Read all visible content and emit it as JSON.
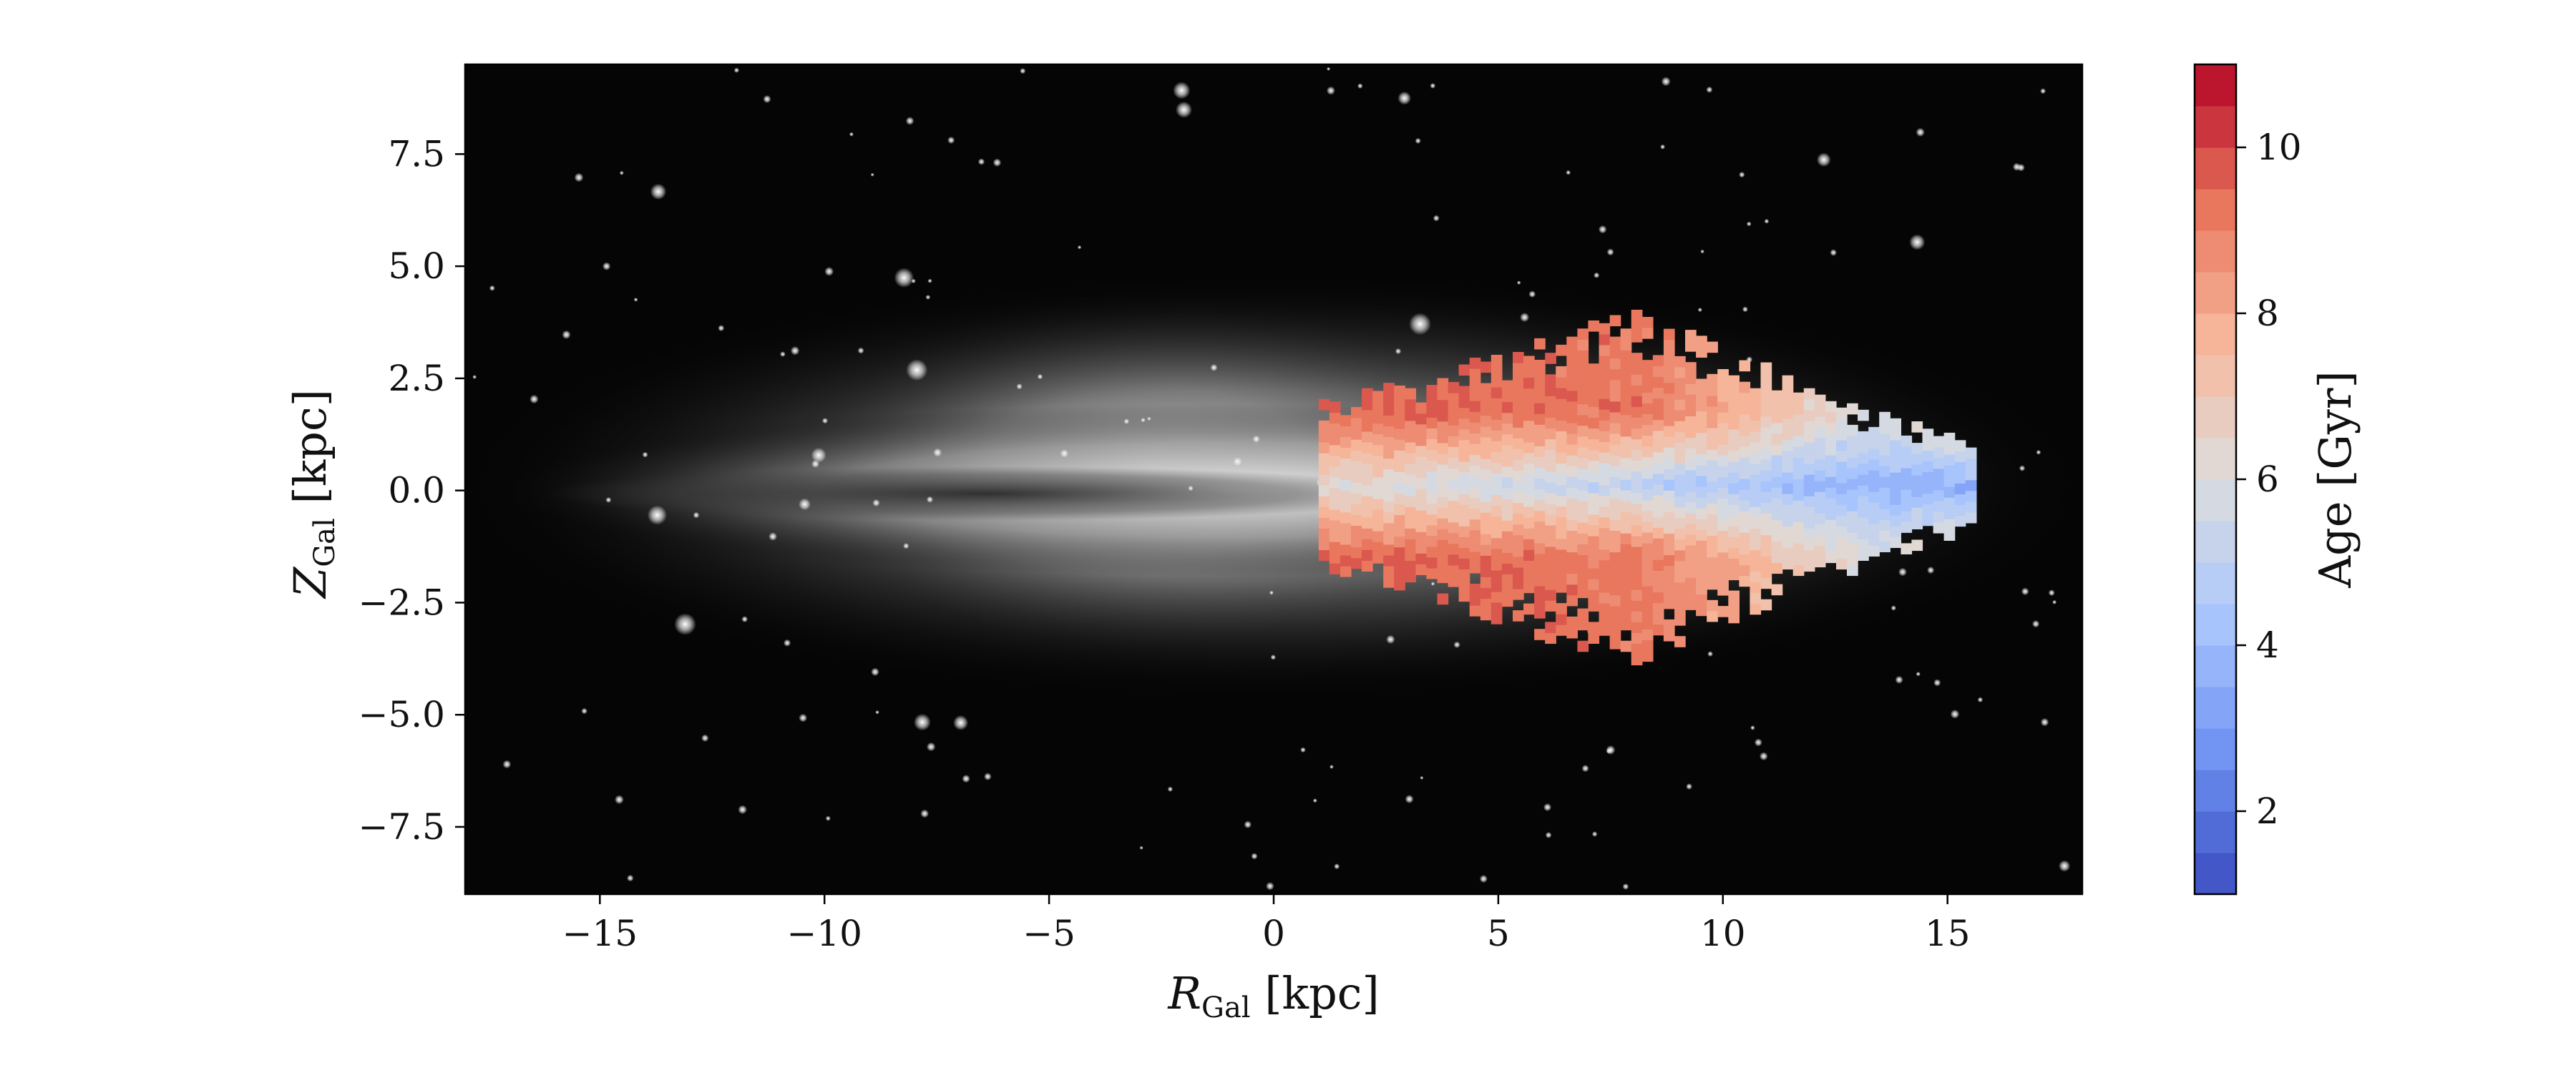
{
  "chart_data": {
    "type": "heatmap",
    "background": "grayscale photograph of an edge-on disk galaxy with a dark central dust lane and a field of point-like stars",
    "xlabel": {
      "symbol": "R",
      "subscript": "Gal",
      "unit": "[kpc]"
    },
    "ylabel": {
      "symbol": "Z",
      "subscript": "Gal",
      "unit": "[kpc]"
    },
    "xlim": [
      -18,
      18
    ],
    "ylim": [
      -9,
      9.5
    ],
    "xticks": [
      {
        "value": -15,
        "label": "−15"
      },
      {
        "value": -10,
        "label": "−10"
      },
      {
        "value": -5,
        "label": "−5"
      },
      {
        "value": 0,
        "label": "0"
      },
      {
        "value": 5,
        "label": "5"
      },
      {
        "value": 10,
        "label": "10"
      },
      {
        "value": 15,
        "label": "15"
      }
    ],
    "yticks": [
      {
        "value": 7.5,
        "label": "7.5"
      },
      {
        "value": 5.0,
        "label": "5.0"
      },
      {
        "value": 2.5,
        "label": "2.5"
      },
      {
        "value": 0.0,
        "label": "0.0"
      },
      {
        "value": -2.5,
        "label": "−2.5"
      },
      {
        "value": -5.0,
        "label": "−5.0"
      },
      {
        "value": -7.5,
        "label": "−7.5"
      }
    ],
    "colorbar": {
      "label": "Age [Gyr]",
      "cmap": "coolwarm",
      "range": [
        1,
        11
      ],
      "levels": 20,
      "ticks": [
        {
          "value": 2,
          "label": "2"
        },
        {
          "value": 4,
          "label": "4"
        },
        {
          "value": 6,
          "label": "6"
        },
        {
          "value": 8,
          "label": "8"
        },
        {
          "value": 10,
          "label": "10"
        }
      ],
      "stops": [
        "#3b4cc0",
        "#6f92f3",
        "#aac7fd",
        "#dddddd",
        "#f7b89c",
        "#e7745b",
        "#b40426"
      ]
    },
    "age_map": {
      "cell_kpc": 0.24,
      "r_range": [
        1.0,
        15.6
      ],
      "age_at_midplane": [
        [
          1,
          6.0
        ],
        [
          5,
          5.4
        ],
        [
          9,
          4.4
        ],
        [
          13,
          3.6
        ],
        [
          15.5,
          3.4
        ]
      ],
      "age_at_high_z": [
        [
          1,
          9.6
        ],
        [
          5,
          9.4
        ],
        [
          8,
          9.2
        ],
        [
          10,
          8.0
        ],
        [
          12,
          6.6
        ],
        [
          13,
          6.0
        ]
      ],
      "thickness_kpc": [
        [
          1,
          1.8
        ],
        [
          3,
          2.3
        ],
        [
          6,
          3.4
        ],
        [
          8,
          3.9
        ],
        [
          10,
          3.0
        ],
        [
          12,
          2.2
        ],
        [
          14,
          1.4
        ],
        [
          15.6,
          0.9
        ]
      ]
    }
  }
}
